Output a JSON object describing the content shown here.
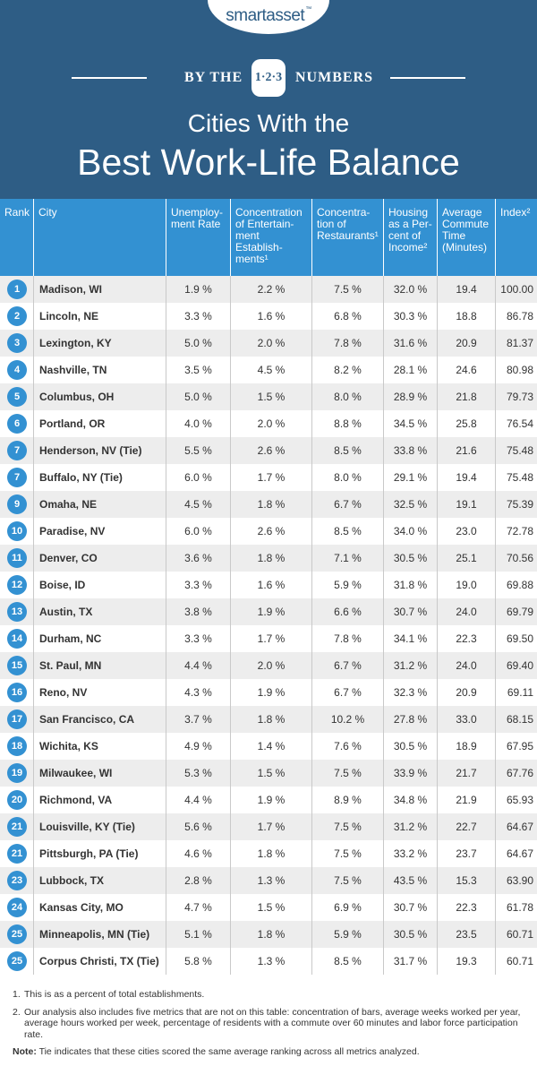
{
  "header": {
    "logo": "smartasset",
    "logo_mark": "™",
    "by_the": "BY THE",
    "badge": "1·2·3",
    "numbers": "NUMBERS",
    "title_line1": "Cities With the",
    "title_line2": "Best Work-Life Balance"
  },
  "columns": {
    "rank": "Rank",
    "city": "City",
    "unemployment": "Unemploy-ment Rate",
    "entertainment": "Concentration of Entertain-ment Establish-ments¹",
    "restaurants": "Concentra-tion of Restaurants¹",
    "housing": "Housing as a Per-cent of Income²",
    "commute": "Average Commute Time (Minutes)",
    "index": "Index²"
  },
  "rows": [
    {
      "rank": "1",
      "city": "Madison, WI",
      "unemp": "1.9 %",
      "ent": "2.2 %",
      "rest": "7.5 %",
      "housing": "32.0 %",
      "commute": "19.4",
      "index": "100.00"
    },
    {
      "rank": "2",
      "city": "Lincoln, NE",
      "unemp": "3.3 %",
      "ent": "1.6 %",
      "rest": "6.8 %",
      "housing": "30.3 %",
      "commute": "18.8",
      "index": "86.78"
    },
    {
      "rank": "3",
      "city": "Lexington, KY",
      "unemp": "5.0 %",
      "ent": "2.0 %",
      "rest": "7.8 %",
      "housing": "31.6 %",
      "commute": "20.9",
      "index": "81.37"
    },
    {
      "rank": "4",
      "city": "Nashville, TN",
      "unemp": "3.5 %",
      "ent": "4.5 %",
      "rest": "8.2 %",
      "housing": "28.1 %",
      "commute": "24.6",
      "index": "80.98"
    },
    {
      "rank": "5",
      "city": "Columbus, OH",
      "unemp": "5.0 %",
      "ent": "1.5 %",
      "rest": "8.0 %",
      "housing": "28.9 %",
      "commute": "21.8",
      "index": "79.73"
    },
    {
      "rank": "6",
      "city": "Portland, OR",
      "unemp": "4.0 %",
      "ent": "2.0 %",
      "rest": "8.8 %",
      "housing": "34.5 %",
      "commute": "25.8",
      "index": "76.54"
    },
    {
      "rank": "7",
      "city": "Henderson, NV (Tie)",
      "unemp": "5.5 %",
      "ent": "2.6 %",
      "rest": "8.5 %",
      "housing": "33.8 %",
      "commute": "21.6",
      "index": "75.48"
    },
    {
      "rank": "7",
      "city": "Buffalo, NY (Tie)",
      "unemp": "6.0 %",
      "ent": "1.7 %",
      "rest": "8.0 %",
      "housing": "29.1 %",
      "commute": "19.4",
      "index": "75.48"
    },
    {
      "rank": "9",
      "city": "Omaha, NE",
      "unemp": "4.5 %",
      "ent": "1.8 %",
      "rest": "6.7 %",
      "housing": "32.5 %",
      "commute": "19.1",
      "index": "75.39"
    },
    {
      "rank": "10",
      "city": "Paradise, NV",
      "unemp": "6.0 %",
      "ent": "2.6 %",
      "rest": "8.5 %",
      "housing": "34.0 %",
      "commute": "23.0",
      "index": "72.78"
    },
    {
      "rank": "11",
      "city": "Denver, CO",
      "unemp": "3.6 %",
      "ent": "1.8 %",
      "rest": "7.1 %",
      "housing": "30.5 %",
      "commute": "25.1",
      "index": "70.56"
    },
    {
      "rank": "12",
      "city": "Boise, ID",
      "unemp": "3.3 %",
      "ent": "1.6 %",
      "rest": "5.9 %",
      "housing": "31.8 %",
      "commute": "19.0",
      "index": "69.88"
    },
    {
      "rank": "13",
      "city": "Austin, TX",
      "unemp": "3.8 %",
      "ent": "1.9 %",
      "rest": "6.6 %",
      "housing": "30.7 %",
      "commute": "24.0",
      "index": "69.79"
    },
    {
      "rank": "14",
      "city": "Durham, NC",
      "unemp": "3.3 %",
      "ent": "1.7 %",
      "rest": "7.8 %",
      "housing": "34.1 %",
      "commute": "22.3",
      "index": "69.50"
    },
    {
      "rank": "15",
      "city": "St. Paul, MN",
      "unemp": "4.4 %",
      "ent": "2.0 %",
      "rest": "6.7 %",
      "housing": "31.2 %",
      "commute": "24.0",
      "index": "69.40"
    },
    {
      "rank": "16",
      "city": "Reno, NV",
      "unemp": "4.3 %",
      "ent": "1.9 %",
      "rest": "6.7 %",
      "housing": "32.3 %",
      "commute": "20.9",
      "index": "69.11"
    },
    {
      "rank": "17",
      "city": "San Francisco, CA",
      "unemp": "3.7 %",
      "ent": "1.8 %",
      "rest": "10.2 %",
      "housing": "27.8 %",
      "commute": "33.0",
      "index": "68.15"
    },
    {
      "rank": "18",
      "city": "Wichita, KS",
      "unemp": "4.9 %",
      "ent": "1.4 %",
      "rest": "7.6 %",
      "housing": "30.5 %",
      "commute": "18.9",
      "index": "67.95"
    },
    {
      "rank": "19",
      "city": "Milwaukee, WI",
      "unemp": "5.3 %",
      "ent": "1.5 %",
      "rest": "7.5 %",
      "housing": "33.9 %",
      "commute": "21.7",
      "index": "67.76"
    },
    {
      "rank": "20",
      "city": "Richmond, VA",
      "unemp": "4.4 %",
      "ent": "1.9 %",
      "rest": "8.9 %",
      "housing": "34.8 %",
      "commute": "21.9",
      "index": "65.93"
    },
    {
      "rank": "21",
      "city": "Louisville, KY (Tie)",
      "unemp": "5.6 %",
      "ent": "1.7 %",
      "rest": "7.5 %",
      "housing": "31.2 %",
      "commute": "22.7",
      "index": "64.67"
    },
    {
      "rank": "21",
      "city": "Pittsburgh, PA (Tie)",
      "unemp": "4.6 %",
      "ent": "1.8 %",
      "rest": "7.5 %",
      "housing": "33.2 %",
      "commute": "23.7",
      "index": "64.67"
    },
    {
      "rank": "23",
      "city": "Lubbock, TX",
      "unemp": "2.8 %",
      "ent": "1.3 %",
      "rest": "7.5 %",
      "housing": "43.5 %",
      "commute": "15.3",
      "index": "63.90"
    },
    {
      "rank": "24",
      "city": "Kansas City, MO",
      "unemp": "4.7 %",
      "ent": "1.5 %",
      "rest": "6.9 %",
      "housing": "30.7 %",
      "commute": "22.3",
      "index": "61.78"
    },
    {
      "rank": "25",
      "city": "Minneapolis, MN (Tie)",
      "unemp": "5.1 %",
      "ent": "1.8 %",
      "rest": "5.9 %",
      "housing": "30.5 %",
      "commute": "23.5",
      "index": "60.71"
    },
    {
      "rank": "25",
      "city": "Corpus Christi, TX (Tie)",
      "unemp": "5.8 %",
      "ent": "1.3 %",
      "rest": "8.5 %",
      "housing": "31.7 %",
      "commute": "19.3",
      "index": "60.71"
    }
  ],
  "footnotes": {
    "n1_num": "1.",
    "n1": "This is as a percent of total establishments.",
    "n2_num": "2.",
    "n2": "Our analysis also includes five metrics that are not on this table: concentration of bars, average weeks worked per year, average hours worked per week, percentage of residents with a commute over 60 minutes and labor force participation rate.",
    "note_label": "Note:",
    "note": "Tie indicates that these cities scored the same average ranking across all metrics analyzed."
  }
}
